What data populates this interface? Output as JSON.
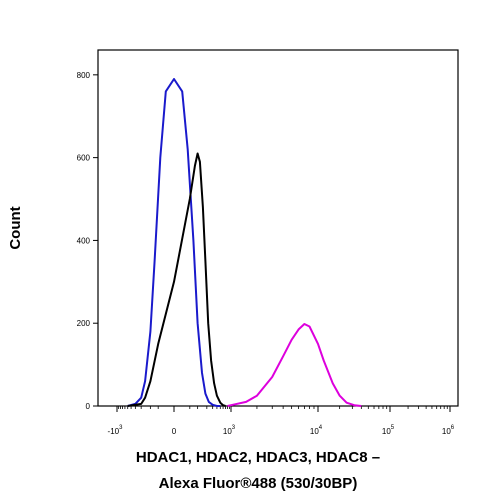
{
  "chart_data": {
    "type": "line",
    "title": "",
    "xlabel_line1": "HDAC1, HDAC2, HDAC3, HDAC8 –",
    "xlabel_line2": "Alexa Fluor®488 (530/30BP)",
    "ylabel": "Count",
    "ylim": [
      0,
      860
    ],
    "yticks": [
      0,
      200,
      400,
      600,
      800
    ],
    "xscale": "biexponential",
    "xticks": [
      {
        "value": -1000,
        "label": "-10",
        "exp": "3"
      },
      {
        "value": 0,
        "label": "0",
        "exp": ""
      },
      {
        "value": 1000,
        "label": "10",
        "exp": "3"
      },
      {
        "value": 10000,
        "label": "10",
        "exp": "4"
      },
      {
        "value": 100000,
        "label": "10",
        "exp": "5"
      },
      {
        "value": 1000000,
        "label": "10",
        "exp": "6"
      }
    ],
    "grid": false,
    "legend": "none",
    "series": [
      {
        "color": "#1a1acc",
        "x": [
          -500,
          -300,
          -200,
          -150,
          -100,
          -70,
          -40,
          -20,
          0,
          20,
          40,
          70,
          100,
          140,
          180,
          230,
          300,
          400,
          500
        ],
        "y": [
          0,
          5,
          20,
          60,
          180,
          350,
          600,
          760,
          790,
          760,
          620,
          400,
          200,
          80,
          30,
          10,
          3,
          0,
          0
        ]
      },
      {
        "color": "#000000",
        "x": [
          -500,
          -200,
          -150,
          -100,
          -50,
          0,
          50,
          80,
          100,
          120,
          150,
          180,
          220,
          270,
          330,
          400,
          500,
          600,
          700
        ],
        "y": [
          0,
          5,
          20,
          60,
          150,
          300,
          500,
          580,
          610,
          590,
          480,
          350,
          200,
          110,
          55,
          25,
          8,
          2,
          0
        ]
      },
      {
        "color": "#dd00dd",
        "x": [
          800,
          1000,
          1500,
          2000,
          3000,
          4000,
          5000,
          6000,
          7000,
          8000,
          10000,
          12000,
          16000,
          20000,
          25000,
          32000,
          40000
        ],
        "y": [
          0,
          2,
          10,
          25,
          70,
          120,
          160,
          185,
          198,
          192,
          150,
          110,
          55,
          25,
          8,
          2,
          0
        ]
      }
    ]
  }
}
